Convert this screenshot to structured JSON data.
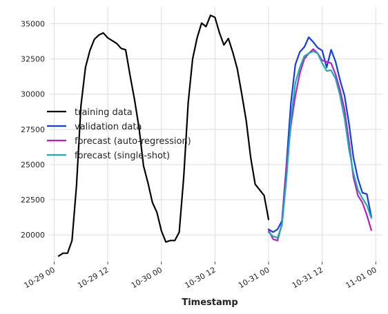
{
  "chart_data": {
    "type": "line",
    "xlabel": "Timestamp",
    "ylabel": "",
    "x_ticks": [
      "10-29 00",
      "10-29 12",
      "10-30 00",
      "10-30 12",
      "10-31 00",
      "10-31 12",
      "11-01 00"
    ],
    "x_tick_hours": [
      0,
      12,
      24,
      36,
      48,
      60,
      72
    ],
    "y_ticks": [
      20000,
      22500,
      25000,
      27500,
      30000,
      32500,
      35000
    ],
    "y_tick_labels": [
      "20000",
      "22500",
      "25000",
      "27500",
      "30000",
      "32500",
      "35000"
    ],
    "x_unit": "hours since 10-29 00",
    "xlim": [
      -1,
      73.5
    ],
    "ylim": [
      18100,
      36200
    ],
    "grid": true,
    "legend_position": "center-left",
    "series": [
      {
        "name": "training data",
        "color": "#000000",
        "points": [
          [
            1,
            18500
          ],
          [
            2,
            18700
          ],
          [
            3,
            18700
          ],
          [
            4,
            19600
          ],
          [
            5,
            23500
          ],
          [
            6,
            29200
          ],
          [
            7,
            31900
          ],
          [
            8,
            33100
          ],
          [
            9,
            33900
          ],
          [
            10,
            34200
          ],
          [
            11,
            34350
          ],
          [
            12,
            34000
          ],
          [
            13,
            33800
          ],
          [
            14,
            33600
          ],
          [
            15,
            33250
          ],
          [
            16,
            33150
          ],
          [
            17,
            31300
          ],
          [
            18,
            29600
          ],
          [
            19,
            27600
          ],
          [
            20,
            24900
          ],
          [
            21,
            23700
          ],
          [
            22,
            22300
          ],
          [
            23,
            21600
          ],
          [
            24,
            20300
          ],
          [
            25,
            19500
          ],
          [
            26,
            19600
          ],
          [
            27,
            19600
          ],
          [
            28,
            20200
          ],
          [
            29,
            24100
          ],
          [
            30,
            29400
          ],
          [
            31,
            32500
          ],
          [
            32,
            34000
          ],
          [
            33,
            35050
          ],
          [
            34,
            34800
          ],
          [
            35,
            35600
          ],
          [
            36,
            35450
          ],
          [
            37,
            34350
          ],
          [
            38,
            33500
          ],
          [
            39,
            33950
          ],
          [
            40,
            32950
          ],
          [
            41,
            31800
          ],
          [
            42,
            30000
          ],
          [
            43,
            28100
          ],
          [
            44,
            25500
          ],
          [
            45,
            23600
          ],
          [
            46,
            23200
          ],
          [
            47,
            22800
          ],
          [
            48,
            21100
          ]
        ]
      },
      {
        "name": "validation data",
        "color": "#0f3ee6",
        "points": [
          [
            48,
            20400
          ],
          [
            49,
            20200
          ],
          [
            50,
            20400
          ],
          [
            51,
            21000
          ],
          [
            52,
            25000
          ],
          [
            53,
            29400
          ],
          [
            54,
            32100
          ],
          [
            55,
            33000
          ],
          [
            56,
            33350
          ],
          [
            57,
            34050
          ],
          [
            58,
            33700
          ],
          [
            59,
            33300
          ],
          [
            60,
            33100
          ],
          [
            61,
            31900
          ],
          [
            62,
            33150
          ],
          [
            63,
            32300
          ],
          [
            64,
            31000
          ],
          [
            65,
            29900
          ],
          [
            66,
            27900
          ],
          [
            67,
            25500
          ],
          [
            68,
            24000
          ],
          [
            69,
            23000
          ],
          [
            70,
            22900
          ],
          [
            71,
            21300
          ]
        ]
      },
      {
        "name": "forecast (auto-regression)",
        "color": "#bb1fbb",
        "points": [
          [
            48,
            20350
          ],
          [
            49,
            19700
          ],
          [
            50,
            19600
          ],
          [
            51,
            20800
          ],
          [
            52,
            24800
          ],
          [
            53,
            27800
          ],
          [
            54,
            29900
          ],
          [
            55,
            31500
          ],
          [
            56,
            32500
          ],
          [
            57,
            32900
          ],
          [
            58,
            33200
          ],
          [
            59,
            32900
          ],
          [
            60,
            32400
          ],
          [
            61,
            32300
          ],
          [
            62,
            32200
          ],
          [
            63,
            31400
          ],
          [
            64,
            30300
          ],
          [
            65,
            28900
          ],
          [
            66,
            26600
          ],
          [
            67,
            24100
          ],
          [
            68,
            22800
          ],
          [
            69,
            22300
          ],
          [
            70,
            21400
          ],
          [
            71,
            20350
          ]
        ]
      },
      {
        "name": "forecast (single-shot)",
        "color": "#1aaab4",
        "points": [
          [
            48,
            20200
          ],
          [
            49,
            19900
          ],
          [
            50,
            19800
          ],
          [
            51,
            20700
          ],
          [
            52,
            24000
          ],
          [
            53,
            28200
          ],
          [
            54,
            30800
          ],
          [
            55,
            31900
          ],
          [
            56,
            32700
          ],
          [
            57,
            32900
          ],
          [
            58,
            33050
          ],
          [
            59,
            32900
          ],
          [
            60,
            32200
          ],
          [
            61,
            31650
          ],
          [
            62,
            31700
          ],
          [
            63,
            31100
          ],
          [
            64,
            29900
          ],
          [
            65,
            28300
          ],
          [
            66,
            26100
          ],
          [
            67,
            24400
          ],
          [
            68,
            23200
          ],
          [
            69,
            22600
          ],
          [
            70,
            22100
          ],
          [
            71,
            21200
          ]
        ]
      }
    ]
  }
}
